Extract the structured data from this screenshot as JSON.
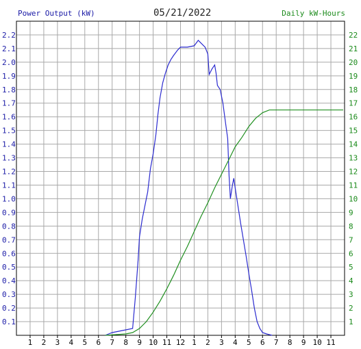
{
  "header": {
    "left_title": "Power Output (kW)",
    "date": "05/21/2022",
    "right_title": "Daily kW-Hours"
  },
  "chart_data": {
    "type": "line",
    "title": "05/21/2022",
    "ylabel": "Power Output (kW)",
    "y2label": "Daily kW-Hours",
    "ylim": [
      0,
      2.3
    ],
    "y2lim": [
      0,
      23
    ],
    "grid": true,
    "x_tick_labels": [
      "1",
      "2",
      "3",
      "4",
      "5",
      "6",
      "7",
      "8",
      "9",
      "10",
      "11",
      "12",
      "1",
      "2",
      "3",
      "4",
      "5",
      "6",
      "7",
      "8",
      "9",
      "10",
      "11"
    ],
    "y_tick_labels": [
      "0.1",
      "0.2",
      "0.3",
      "0.4",
      "0.5",
      "0.6",
      "0.7",
      "0.8",
      "0.9",
      "1.0",
      "1.1",
      "1.2",
      "1.3",
      "1.4",
      "1.5",
      "1.6",
      "1.7",
      "1.8",
      "1.9",
      "2.0",
      "2.1",
      "2.2"
    ],
    "y2_tick_labels": [
      "1",
      "2",
      "3",
      "4",
      "5",
      "6",
      "7",
      "8",
      "9",
      "10",
      "11",
      "12",
      "13",
      "14",
      "15",
      "16",
      "17",
      "18",
      "19",
      "20",
      "21",
      "22"
    ],
    "colors": {
      "power": "#2a2acf",
      "energy": "#1f8f1f",
      "grid": "#a8a8a8",
      "axis": "#000000"
    },
    "series": [
      {
        "name": "Power Output (kW)",
        "axis": "left",
        "points": [
          [
            6.5,
            0.0
          ],
          [
            7.0,
            0.02
          ],
          [
            7.5,
            0.03
          ],
          [
            8.0,
            0.04
          ],
          [
            8.5,
            0.05
          ],
          [
            8.7,
            0.28
          ],
          [
            8.9,
            0.55
          ],
          [
            9.0,
            0.72
          ],
          [
            9.2,
            0.85
          ],
          [
            9.4,
            0.95
          ],
          [
            9.6,
            1.05
          ],
          [
            9.8,
            1.22
          ],
          [
            10.0,
            1.33
          ],
          [
            10.2,
            1.47
          ],
          [
            10.35,
            1.62
          ],
          [
            10.5,
            1.74
          ],
          [
            10.7,
            1.85
          ],
          [
            10.9,
            1.92
          ],
          [
            11.1,
            1.98
          ],
          [
            11.3,
            2.02
          ],
          [
            11.5,
            2.05
          ],
          [
            11.8,
            2.09
          ],
          [
            12.0,
            2.11
          ],
          [
            12.5,
            2.11
          ],
          [
            13.0,
            2.12
          ],
          [
            13.3,
            2.16
          ],
          [
            13.5,
            2.14
          ],
          [
            13.8,
            2.11
          ],
          [
            14.0,
            2.06
          ],
          [
            14.1,
            1.91
          ],
          [
            14.3,
            1.95
          ],
          [
            14.5,
            1.98
          ],
          [
            14.6,
            1.92
          ],
          [
            14.7,
            1.83
          ],
          [
            14.9,
            1.8
          ],
          [
            15.1,
            1.7
          ],
          [
            15.3,
            1.55
          ],
          [
            15.45,
            1.44
          ],
          [
            15.55,
            1.17
          ],
          [
            15.65,
            1.0
          ],
          [
            15.8,
            1.1
          ],
          [
            15.9,
            1.15
          ],
          [
            16.0,
            1.08
          ],
          [
            16.2,
            0.95
          ],
          [
            16.4,
            0.82
          ],
          [
            16.6,
            0.7
          ],
          [
            16.8,
            0.58
          ],
          [
            17.0,
            0.45
          ],
          [
            17.2,
            0.33
          ],
          [
            17.4,
            0.2
          ],
          [
            17.6,
            0.1
          ],
          [
            17.8,
            0.05
          ],
          [
            18.0,
            0.02
          ],
          [
            18.3,
            0.01
          ],
          [
            18.7,
            0.0
          ]
        ]
      },
      {
        "name": "Daily kW-Hours",
        "axis": "right",
        "points": [
          [
            6.5,
            0.0
          ],
          [
            8.0,
            0.1
          ],
          [
            8.5,
            0.2
          ],
          [
            9.0,
            0.5
          ],
          [
            9.5,
            1.0
          ],
          [
            10.0,
            1.7
          ],
          [
            10.5,
            2.5
          ],
          [
            11.0,
            3.4
          ],
          [
            11.5,
            4.4
          ],
          [
            12.0,
            5.5
          ],
          [
            12.5,
            6.5
          ],
          [
            13.0,
            7.6
          ],
          [
            13.5,
            8.7
          ],
          [
            14.0,
            9.7
          ],
          [
            14.5,
            10.8
          ],
          [
            15.0,
            11.8
          ],
          [
            15.5,
            12.8
          ],
          [
            16.0,
            13.8
          ],
          [
            16.5,
            14.5
          ],
          [
            17.0,
            15.3
          ],
          [
            17.5,
            15.9
          ],
          [
            18.0,
            16.3
          ],
          [
            18.5,
            16.5
          ],
          [
            19.0,
            16.5
          ],
          [
            20.0,
            16.5
          ],
          [
            21.0,
            16.5
          ],
          [
            22.0,
            16.5
          ],
          [
            23.0,
            16.5
          ],
          [
            23.9,
            16.5
          ]
        ]
      }
    ]
  }
}
